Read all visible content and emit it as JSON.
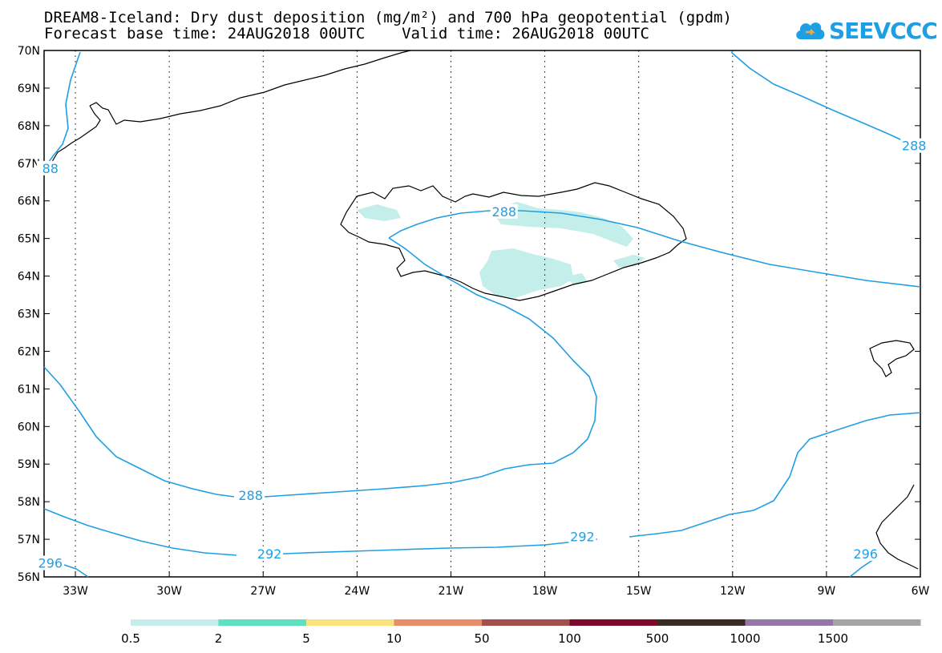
{
  "header": {
    "title_line1": "DREAM8-Iceland: Dry dust deposition (mg/m²) and 700 hPa geopotential (gpdm)",
    "title_line2": "Forecast base time: 24AUG2018 00UTC    Valid time: 26AUG2018 00UTC"
  },
  "logo": {
    "text": "SEEVCCC",
    "icon": "cloud-icon",
    "color": "#1f9fe3"
  },
  "map": {
    "lat_labels": [
      "70N",
      "69N",
      "68N",
      "67N",
      "66N",
      "65N",
      "64N",
      "63N",
      "62N",
      "61N",
      "60N",
      "59N",
      "58N",
      "57N",
      "56N"
    ],
    "lon_labels": [
      "33W",
      "30W",
      "27W",
      "24W",
      "21W",
      "18W",
      "15W",
      "12W",
      "9W",
      "6W"
    ],
    "lat_range": [
      56,
      70
    ],
    "lon_range": [
      -34,
      -6
    ],
    "contour_color": "#1f9fe3",
    "coast_color": "#000000",
    "dust_fill_color": "#c4eeea",
    "contour_labels": [
      {
        "text": "288",
        "lon": -19.3,
        "lat": 65.7
      },
      {
        "text": "288",
        "lon": -27.4,
        "lat": 58.15
      },
      {
        "text": "292",
        "lon": -26.8,
        "lat": 56.6
      },
      {
        "text": "292",
        "lon": -16.8,
        "lat": 57.05
      },
      {
        "text": "296",
        "lon": -7.75,
        "lat": 56.6
      },
      {
        "text": "296",
        "lon": -33.8,
        "lat": 56.35
      },
      {
        "text": "288",
        "lon": -6.2,
        "lat": 67.45
      },
      {
        "text": "88",
        "lon": -33.8,
        "lat": 66.85
      }
    ],
    "grid": "dotted"
  },
  "colorbar": {
    "colors": [
      "#c4eeea",
      "#5de1bf",
      "#f7e47a",
      "#e98c69",
      "#a1504a",
      "#7e0a2b",
      "#3b2a22",
      "#9577a9",
      "#a5a5a5"
    ],
    "tick_labels": [
      "0.5",
      "2",
      "5",
      "10",
      "50",
      "100",
      "500",
      "1000",
      "1500"
    ]
  }
}
